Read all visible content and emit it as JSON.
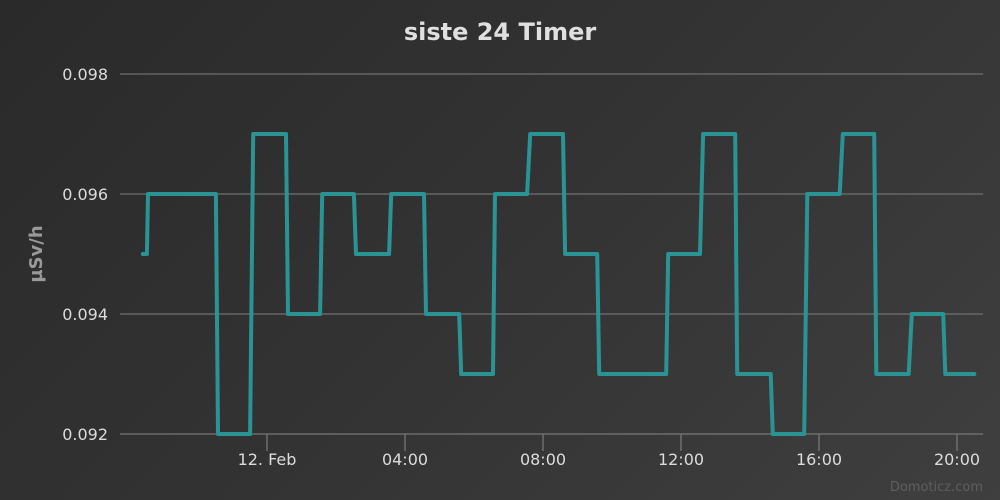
{
  "chart_data": {
    "type": "line",
    "title": "siste 24 Timer",
    "xlabel": "",
    "ylabel": "µSv/h",
    "x_unit": "hours relative to 12. Feb 00:00",
    "xlim": [
      -4.3,
      20.7
    ],
    "ylim": [
      0.092,
      0.098
    ],
    "y_ticks": [
      "0.092",
      "0.094",
      "0.096",
      "0.098"
    ],
    "x_ticks": [
      {
        "value": 0,
        "label": "12. Feb"
      },
      {
        "value": 4,
        "label": "04:00"
      },
      {
        "value": 8,
        "label": "08:00"
      },
      {
        "value": 12,
        "label": "12:00"
      },
      {
        "value": 16,
        "label": "16:00"
      },
      {
        "value": 20,
        "label": "20:00"
      }
    ],
    "grid": true,
    "series": [
      {
        "name": "µSv/h",
        "color": "#2a9494",
        "x": [
          -3.6,
          -3.48,
          -3.45,
          -1.48,
          -1.42,
          -0.49,
          -0.4,
          0.55,
          0.61,
          1.54,
          1.6,
          2.52,
          2.58,
          3.54,
          3.6,
          4.55,
          4.61,
          5.57,
          5.63,
          6.55,
          6.61,
          7.54,
          7.63,
          8.58,
          8.64,
          9.57,
          9.63,
          11.57,
          11.63,
          12.55,
          12.64,
          13.57,
          13.63,
          14.6,
          14.66,
          15.57,
          15.66,
          16.6,
          16.69,
          17.6,
          17.66,
          18.6,
          18.69,
          19.6,
          19.66,
          20.5
        ],
        "y": [
          0.095,
          0.095,
          0.096,
          0.096,
          0.092,
          0.092,
          0.097,
          0.097,
          0.094,
          0.094,
          0.096,
          0.096,
          0.095,
          0.095,
          0.096,
          0.096,
          0.094,
          0.094,
          0.093,
          0.093,
          0.096,
          0.096,
          0.097,
          0.097,
          0.095,
          0.095,
          0.093,
          0.093,
          0.095,
          0.095,
          0.097,
          0.097,
          0.093,
          0.093,
          0.092,
          0.092,
          0.096,
          0.096,
          0.097,
          0.097,
          0.093,
          0.093,
          0.094,
          0.094,
          0.093,
          0.093
        ]
      }
    ],
    "credit": "Domoticz.com"
  }
}
